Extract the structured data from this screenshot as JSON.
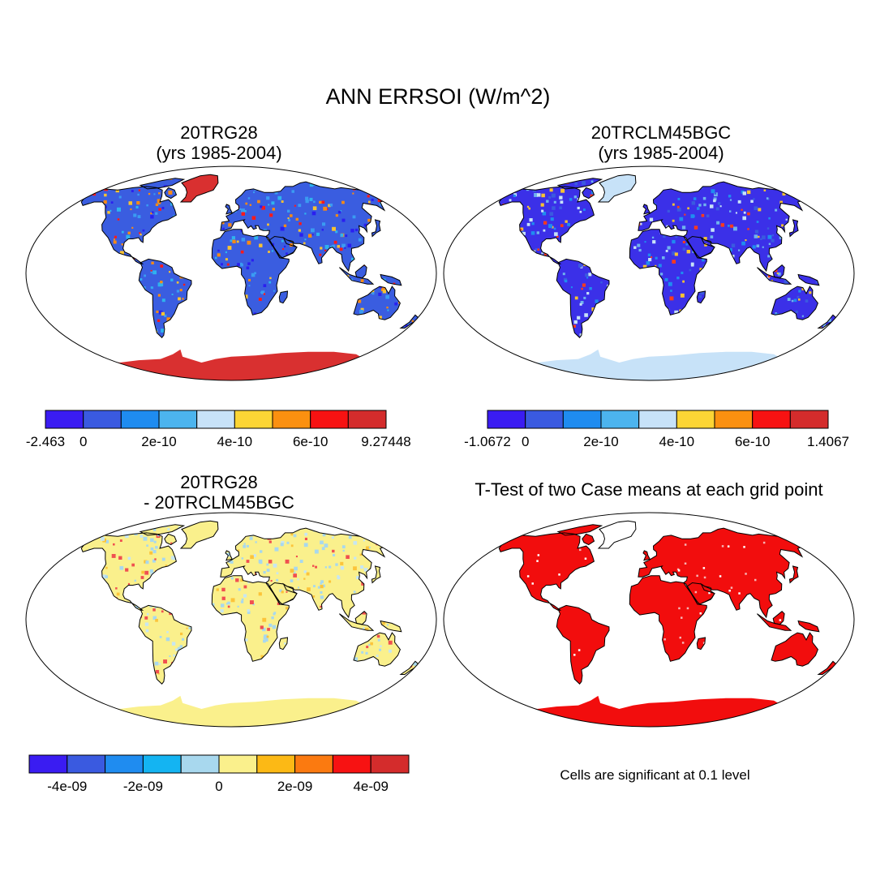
{
  "figure": {
    "title": "ANN ERRSOI (W/m^2)"
  },
  "panels": [
    {
      "title_line1": "20TRG28",
      "title_line2": "(yrs 1985-2004)",
      "base_color": "#3a5de0",
      "speckle_colors": [
        "#2a1ff0",
        "#3a9bf2",
        "#2fb2ee",
        "#f7c232",
        "#f78a15",
        "#ff1a1a"
      ],
      "greenland_color": "#d93030",
      "antarctica_color": "#d93030",
      "colorbar": {
        "colors": [
          "#3a1cf2",
          "#3a5ae0",
          "#1f8cf0",
          "#4cb4ee",
          "#c7e2f8",
          "#fcd535",
          "#fb9010",
          "#f71212",
          "#d42c2c"
        ],
        "labels": [
          "-2.463",
          "0",
          "2e-10",
          "4e-10",
          "6e-10",
          "9.27448"
        ]
      }
    },
    {
      "title_line1": "20TRCLM45BGC",
      "title_line2": "(yrs 1985-2004)",
      "base_color": "#3b30e8",
      "speckle_colors": [
        "#3a5ae0",
        "#1f8cf0",
        "#6fb3ee",
        "#c7e2f8",
        "#f7c232",
        "#ff3b1a"
      ],
      "greenland_color": "#c7e2f8",
      "antarctica_color": "#c7e2f8",
      "colorbar": {
        "colors": [
          "#3a1cf2",
          "#3a5ae0",
          "#1f8cf0",
          "#4cb4ee",
          "#c7e2f8",
          "#fcd535",
          "#fb9010",
          "#f71212",
          "#d42c2c"
        ],
        "labels": [
          "-1.0672",
          "0",
          "2e-10",
          "4e-10",
          "6e-10",
          "1.4067"
        ]
      }
    },
    {
      "title_line1": "20TRG28",
      "title_line2": "- 20TRCLM45BGC",
      "base_color": "#faf08c",
      "speckle_colors": [
        "#a8d8ee",
        "#a8d8ee",
        "#c7e6f2",
        "#fcc43a",
        "#f05050"
      ],
      "greenland_color": "#faf08c",
      "antarctica_color": "#faf08c",
      "colorbar": {
        "colors": [
          "#3a1cf2",
          "#3a5ae0",
          "#1f8cf0",
          "#14b4f2",
          "#a8d8ee",
          "#faf08c",
          "#fcb915",
          "#fb7a10",
          "#f71212",
          "#d42c2c"
        ],
        "labels": [
          "-4e-09",
          "-2e-09",
          "0",
          "2e-09",
          "4e-09"
        ]
      }
    },
    {
      "title_line1": "T-Test of two Case means at each grid point",
      "base_color": "#f20d0d",
      "speckle_colors": [
        "#f6b4b4",
        "#ffffff"
      ],
      "greenland_color": "#ffffff",
      "antarctica_color": "#f20d0d",
      "note": "Cells are significant at 0.1 level"
    }
  ]
}
